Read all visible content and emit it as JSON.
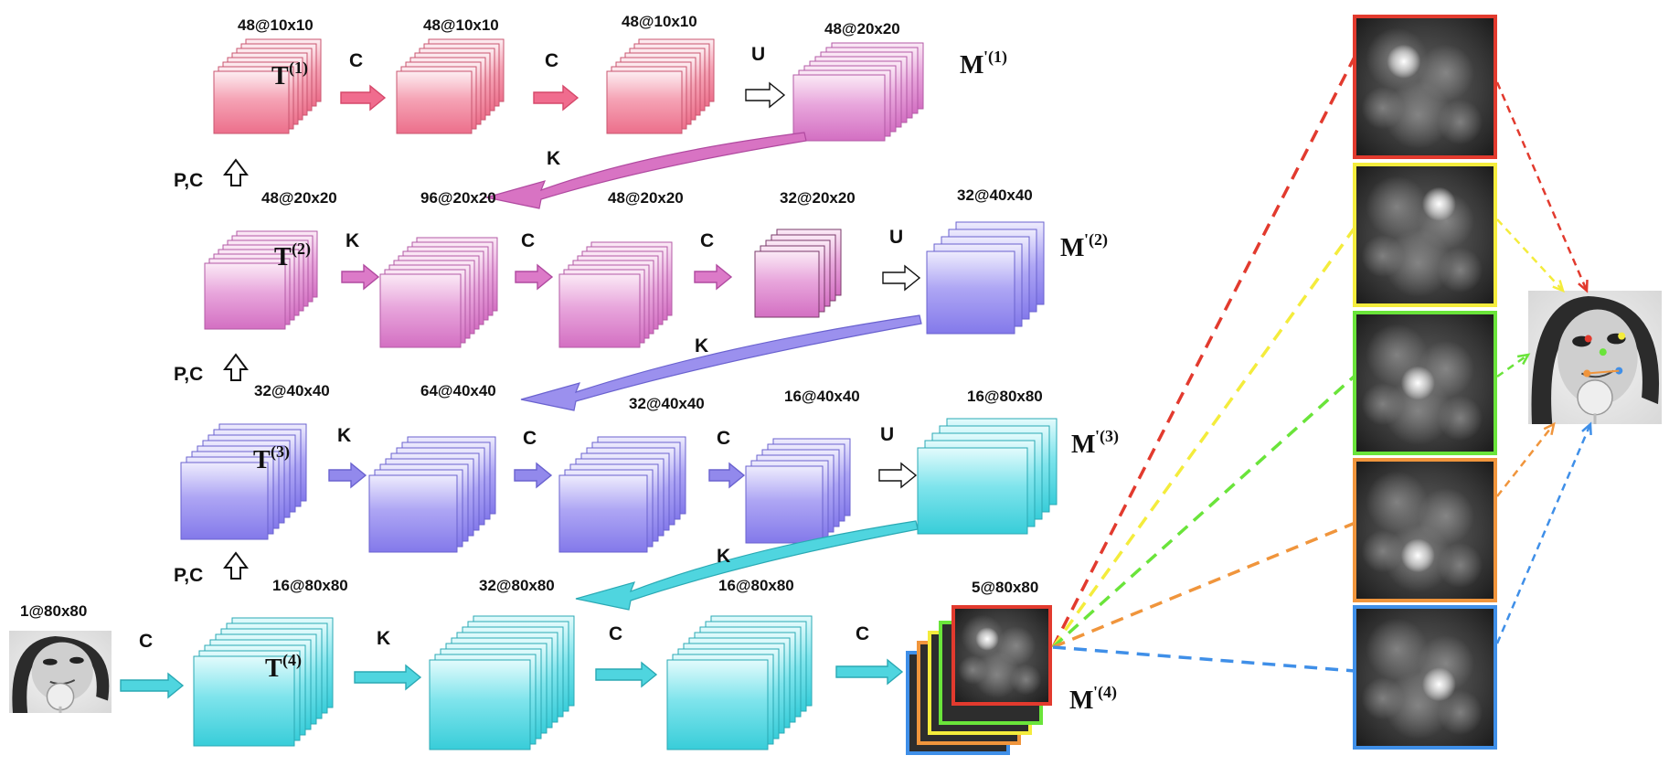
{
  "colors": {
    "row1": "#f0788f",
    "row2": "#dc78c8",
    "row3": "#8c82ee",
    "row4": "#3ed3df",
    "red": "#e23a2e",
    "yellow": "#f4ec3c",
    "green": "#6ae43a",
    "orange": "#f0953c",
    "blue": "#3f8fe8"
  },
  "rows": [
    {
      "id": "row1",
      "t_label": "T",
      "t_sup": "(1)",
      "m_label": "M",
      "m_sup": "'(1)",
      "dims": [
        "48@10x10",
        "48@10x10",
        "48@10x10",
        "48@20x20"
      ],
      "ops": [
        "C",
        "C",
        "U"
      ],
      "up_label": "P,C",
      "skip_label": "K"
    },
    {
      "id": "row2",
      "t_label": "T",
      "t_sup": "(2)",
      "m_label": "M",
      "m_sup": "'(2)",
      "dims": [
        "48@20x20",
        "96@20x20",
        "48@20x20",
        "32@20x20",
        "32@40x40"
      ],
      "ops": [
        "K",
        "C",
        "C",
        "U"
      ],
      "up_label": "P,C",
      "skip_label": "K"
    },
    {
      "id": "row3",
      "t_label": "T",
      "t_sup": "(3)",
      "m_label": "M",
      "m_sup": "'(3)",
      "dims": [
        "32@40x40",
        "64@40x40",
        "32@40x40",
        "16@40x40",
        "16@80x80"
      ],
      "ops": [
        "K",
        "C",
        "C",
        "U"
      ],
      "up_label": "P,C",
      "skip_label": "K"
    },
    {
      "id": "row4",
      "t_label": "T",
      "t_sup": "(4)",
      "m_label": "M",
      "m_sup": "'(4)",
      "input_dim": "1@80x80",
      "dims": [
        "16@80x80",
        "32@80x80",
        "16@80x80",
        "5@80x80"
      ],
      "ops": [
        "C",
        "K",
        "C",
        "C"
      ]
    }
  ],
  "heatmaps": [
    "red",
    "yellow",
    "green",
    "orange",
    "blue"
  ]
}
